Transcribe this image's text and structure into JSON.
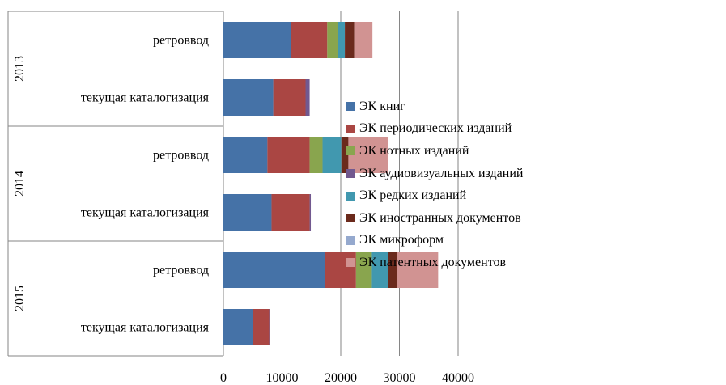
{
  "chart_data": {
    "type": "bar",
    "orientation": "horizontal",
    "stacked": true,
    "groups": [
      {
        "label": "2013",
        "categories": [
          "ретроввод",
          "текущая каталогизация"
        ]
      },
      {
        "label": "2014",
        "categories": [
          "ретроввод",
          "текущая каталогизация"
        ]
      },
      {
        "label": "2015",
        "categories": [
          "ретроввод",
          "текущая каталогизация"
        ]
      }
    ],
    "series": [
      {
        "name": "ЭК книг",
        "color": "#4572A7",
        "values": [
          11500,
          8500,
          7500,
          8200,
          17300,
          5000
        ]
      },
      {
        "name": "ЭК периодических изданий",
        "color": "#AA4643",
        "values": [
          6200,
          5500,
          7200,
          6500,
          5300,
          2800
        ]
      },
      {
        "name": "ЭК нотных изданий",
        "color": "#89A54E",
        "values": [
          1800,
          0,
          2200,
          0,
          2700,
          0
        ]
      },
      {
        "name": "ЭК аудиовизуальных изданий",
        "color": "#71588F",
        "values": [
          0,
          700,
          0,
          200,
          0,
          100
        ]
      },
      {
        "name": "ЭК редких изданий",
        "color": "#4198AF",
        "values": [
          1200,
          0,
          3200,
          0,
          2700,
          0
        ]
      },
      {
        "name": "ЭК иностранных документов",
        "color": "#6B2A1C",
        "values": [
          1600,
          0,
          1200,
          0,
          1600,
          0
        ]
      },
      {
        "name": "ЭК микроформ",
        "color": "#95A9CE",
        "values": [
          0,
          0,
          0,
          0,
          0,
          0
        ]
      },
      {
        "name": "ЭК патентных документов",
        "color": "#D19392",
        "values": [
          3100,
          0,
          6800,
          0,
          7000,
          0
        ]
      }
    ],
    "xlim": [
      0,
      40000
    ],
    "xticks": [
      "0",
      "10000",
      "20000",
      "30000",
      "40000"
    ],
    "grid": true,
    "legend_position": "right"
  }
}
